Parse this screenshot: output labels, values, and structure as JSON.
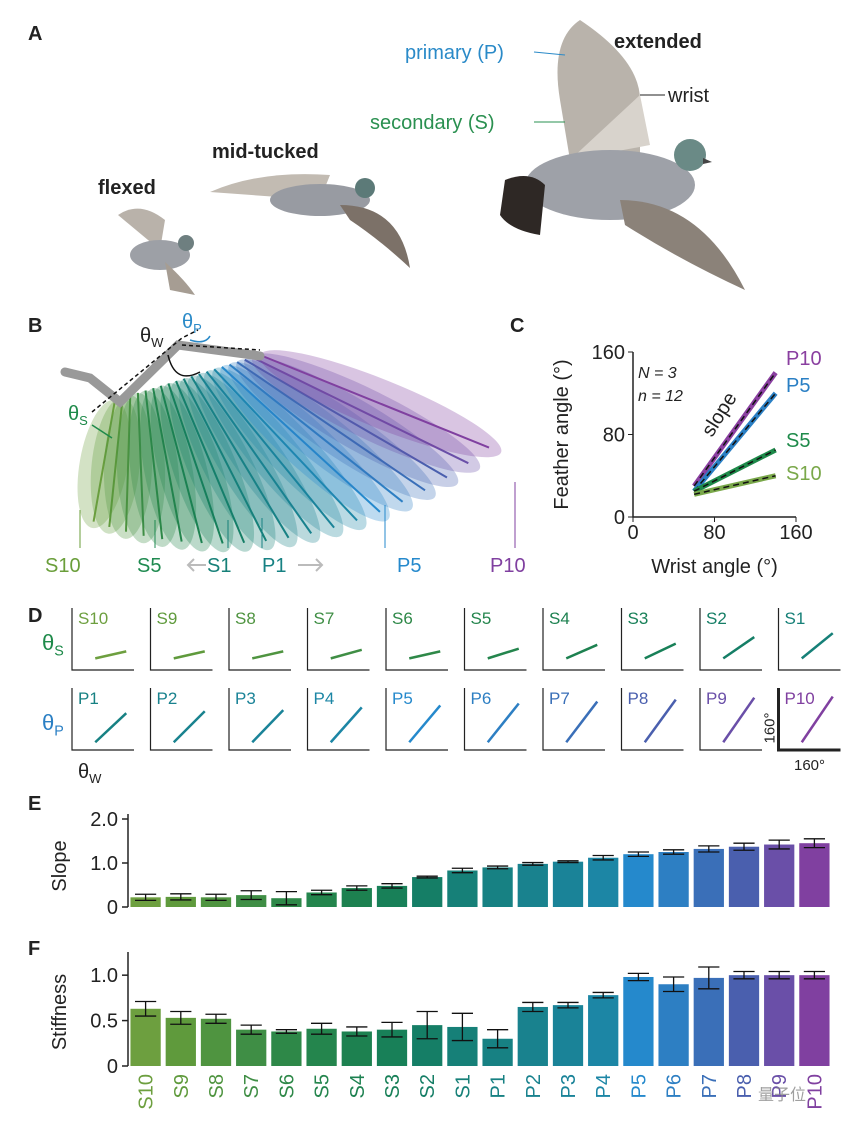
{
  "panel_labels": [
    "A",
    "B",
    "C",
    "D",
    "E",
    "F"
  ],
  "panel_a": {
    "poses": [
      "flexed",
      "mid-tucked",
      "extended"
    ],
    "primary": "primary (P)",
    "secondary": "secondary (S)",
    "wrist": "wrist"
  },
  "panel_b": {
    "feather_labels": [
      "S10",
      "S5",
      "S1",
      "P1",
      "P5",
      "P10"
    ],
    "angle_labels": [
      {
        "symbol": "θ",
        "subscript": "W"
      },
      {
        "symbol": "θ",
        "subscript": "P"
      },
      {
        "symbol": "θ",
        "subscript": "S"
      }
    ]
  },
  "watermark": "量子位",
  "chart_data": [
    {
      "type": "line",
      "ylabel": "Feather angle (°)",
      "xlabel": "Wrist angle (°)",
      "annotations": [
        "N = 3",
        "n = 12",
        "slope"
      ],
      "x": [
        60,
        140
      ],
      "series": [
        {
          "name": "P10",
          "color": "#8a3fa0",
          "values": [
            30,
            140
          ]
        },
        {
          "name": "P5",
          "color": "#2a7fc4",
          "values": [
            25,
            120
          ]
        },
        {
          "name": "S5",
          "color": "#1e8a4a",
          "values": [
            25,
            65
          ]
        },
        {
          "name": "S10",
          "color": "#7aa84a",
          "values": [
            22,
            40
          ]
        }
      ],
      "xlim": [
        0,
        160
      ],
      "ylim": [
        0,
        160
      ],
      "xticks": [
        0,
        80,
        160
      ],
      "yticks": [
        0,
        80,
        160
      ]
    },
    {
      "type": "small-multiples",
      "x": [
        60,
        140
      ],
      "xlim": [
        0,
        160
      ],
      "ylim": [
        0,
        160
      ],
      "row_labels": [
        {
          "symbol": "θ",
          "subscript": "S"
        },
        {
          "symbol": "θ",
          "subscript": "P"
        }
      ],
      "xlabel": {
        "symbol": "θ",
        "subscript": "W"
      },
      "scale_label": "160°",
      "panels": [
        {
          "name": "S10",
          "color": "#6d9f3f",
          "values": [
            30,
            48
          ]
        },
        {
          "name": "S9",
          "color": "#5f9a3c",
          "values": [
            30,
            48
          ]
        },
        {
          "name": "S8",
          "color": "#4f9440",
          "values": [
            30,
            48
          ]
        },
        {
          "name": "S7",
          "color": "#3f8e45",
          "values": [
            30,
            52
          ]
        },
        {
          "name": "S6",
          "color": "#2e8848",
          "values": [
            30,
            48
          ]
        },
        {
          "name": "S5",
          "color": "#24854d",
          "values": [
            30,
            55
          ]
        },
        {
          "name": "S4",
          "color": "#1d8150",
          "values": [
            30,
            65
          ]
        },
        {
          "name": "S3",
          "color": "#188058",
          "values": [
            30,
            68
          ]
        },
        {
          "name": "S2",
          "color": "#157e66",
          "values": [
            30,
            85
          ]
        },
        {
          "name": "S1",
          "color": "#168078",
          "values": [
            30,
            95
          ]
        },
        {
          "name": "P1",
          "color": "#178183",
          "values": [
            20,
            95
          ]
        },
        {
          "name": "P2",
          "color": "#19828e",
          "values": [
            20,
            100
          ]
        },
        {
          "name": "P3",
          "color": "#1a8398",
          "values": [
            20,
            103
          ]
        },
        {
          "name": "P4",
          "color": "#1c86a5",
          "values": [
            20,
            110
          ]
        },
        {
          "name": "P5",
          "color": "#2589cc",
          "values": [
            20,
            115
          ]
        },
        {
          "name": "P6",
          "color": "#2d7fc3",
          "values": [
            20,
            120
          ]
        },
        {
          "name": "P7",
          "color": "#3a6fb8",
          "values": [
            20,
            125
          ]
        },
        {
          "name": "P8",
          "color": "#4a5fae",
          "values": [
            20,
            130
          ]
        },
        {
          "name": "P9",
          "color": "#6a4fa8",
          "values": [
            20,
            135
          ]
        },
        {
          "name": "P10",
          "color": "#8040a0",
          "values": [
            20,
            138
          ]
        }
      ]
    },
    {
      "type": "bar",
      "ylabel": "Slope",
      "colors": [
        "#6d9f3f",
        "#5f9a3c",
        "#4f9440",
        "#3f8e45",
        "#2e8848",
        "#24854d",
        "#1d8150",
        "#188058",
        "#157e66",
        "#168078",
        "#178183",
        "#19828e",
        "#1a8398",
        "#1c86a5",
        "#2589cc",
        "#2d7fc3",
        "#3a6fb8",
        "#4a5fae",
        "#6a4fa8",
        "#8040a0"
      ],
      "values": [
        0.22,
        0.23,
        0.22,
        0.27,
        0.2,
        0.33,
        0.43,
        0.48,
        0.68,
        0.83,
        0.9,
        0.98,
        1.03,
        1.12,
        1.2,
        1.25,
        1.32,
        1.37,
        1.42,
        1.45
      ],
      "errors": [
        0.07,
        0.07,
        0.07,
        0.1,
        0.15,
        0.05,
        0.05,
        0.05,
        0.02,
        0.05,
        0.03,
        0.03,
        0.02,
        0.05,
        0.05,
        0.05,
        0.07,
        0.08,
        0.1,
        0.1
      ],
      "ylim": [
        0,
        2
      ],
      "yticks": [
        0,
        {
          "value": 1,
          "label": "1.0"
        },
        {
          "value": 2,
          "label": "2.0"
        }
      ]
    },
    {
      "type": "bar",
      "ylabel": "Stiffness",
      "categories": [
        "S10",
        "S9",
        "S8",
        "S7",
        "S6",
        "S5",
        "S4",
        "S3",
        "S2",
        "S1",
        "P1",
        "P2",
        "P3",
        "P4",
        "P5",
        "P6",
        "P7",
        "P8",
        "P9",
        "P10"
      ],
      "colors": [
        "#6d9f3f",
        "#5f9a3c",
        "#4f9440",
        "#3f8e45",
        "#2e8848",
        "#24854d",
        "#1d8150",
        "#188058",
        "#157e66",
        "#168078",
        "#178183",
        "#19828e",
        "#1a8398",
        "#1c86a5",
        "#2589cc",
        "#2d7fc3",
        "#3a6fb8",
        "#4a5fae",
        "#6a4fa8",
        "#8040a0"
      ],
      "values": [
        0.63,
        0.53,
        0.52,
        0.4,
        0.38,
        0.41,
        0.38,
        0.4,
        0.45,
        0.43,
        0.3,
        0.65,
        0.67,
        0.78,
        0.98,
        0.9,
        0.97,
        1.0,
        1.0,
        1.0
      ],
      "errors": [
        0.08,
        0.07,
        0.05,
        0.05,
        0.02,
        0.06,
        0.05,
        0.08,
        0.15,
        0.15,
        0.1,
        0.05,
        0.03,
        0.03,
        0.04,
        0.08,
        0.12,
        0.04,
        0.04,
        0.04
      ],
      "ylim": [
        0,
        1.2
      ],
      "yticks": [
        0,
        0.5,
        {
          "value": 1,
          "label": "1.0"
        }
      ]
    }
  ]
}
